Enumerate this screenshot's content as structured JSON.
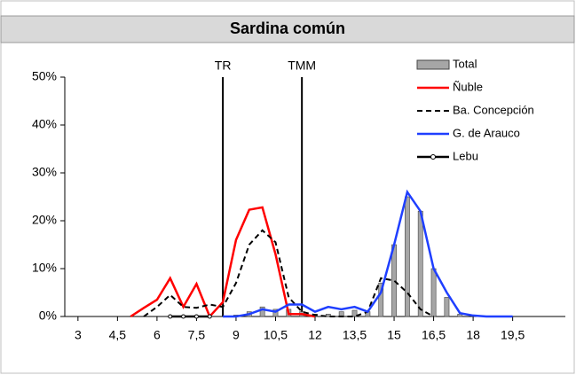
{
  "chart_data": {
    "type": "line",
    "title": "Sardina común",
    "x": [
      3,
      3.5,
      4,
      4.5,
      5,
      5.5,
      6,
      6.5,
      7,
      7.5,
      8,
      8.5,
      9,
      9.5,
      10,
      10.5,
      11,
      11.5,
      12,
      12.5,
      13,
      13.5,
      14,
      14.5,
      15,
      15.5,
      16,
      16.5,
      17,
      17.5,
      18,
      18.5,
      19,
      19.5,
      20,
      20.5,
      21
    ],
    "xlim": [
      2.5,
      21.5
    ],
    "xticks": [
      3,
      {
        "value": 4.5,
        "label": "4,5"
      },
      6,
      {
        "value": 7.5,
        "label": "7,5"
      },
      9,
      {
        "value": 10.5,
        "label": "10,5"
      },
      12,
      {
        "value": 13.5,
        "label": "13,5"
      },
      15,
      {
        "value": 16.5,
        "label": "16,5"
      },
      18,
      {
        "value": 19.5,
        "label": "19,5"
      }
    ],
    "ylim": [
      0,
      50
    ],
    "yticks": [
      {
        "value": 0,
        "label": "0%"
      },
      {
        "value": 10,
        "label": "10%"
      },
      {
        "value": 20,
        "label": "20%"
      },
      {
        "value": 30,
        "label": "30%"
      },
      {
        "value": 40,
        "label": "40%"
      },
      {
        "value": 50,
        "label": "50%"
      }
    ],
    "series": [
      {
        "name": "Total",
        "type": "bar",
        "color": "#a6a6a6",
        "values": [
          null,
          null,
          null,
          null,
          null,
          null,
          null,
          null,
          null,
          null,
          null,
          null,
          0.3,
          1,
          2,
          1.5,
          1.5,
          1,
          0.5,
          0.5,
          1,
          1.3,
          1,
          7,
          15,
          25,
          22,
          10,
          4,
          0.5,
          null,
          null,
          null,
          null,
          null,
          null,
          null
        ]
      },
      {
        "name": "Ñuble",
        "color": "#ff0000",
        "values": [
          null,
          null,
          null,
          null,
          0,
          1.8,
          3.5,
          8,
          2,
          6.8,
          0,
          3,
          16,
          22.3,
          22.8,
          13,
          0.5,
          0.5,
          0,
          null,
          null,
          null,
          null,
          null,
          null,
          null,
          null,
          null,
          null,
          null,
          null,
          null,
          null,
          null,
          null,
          null,
          null
        ]
      },
      {
        "name": "Ba. Concepción",
        "color": "#000000",
        "dash": true,
        "values": [
          null,
          null,
          null,
          null,
          null,
          0,
          2,
          4.5,
          2,
          1.8,
          2.5,
          2,
          7,
          15,
          18,
          15.5,
          4,
          1,
          0.3,
          0,
          0,
          0,
          1,
          8,
          7.5,
          5,
          1.5,
          0,
          null,
          null,
          null,
          null,
          null,
          null,
          null,
          null,
          null
        ]
      },
      {
        "name": "G. de Arauco",
        "color": "#1f3fff",
        "values": [
          null,
          null,
          null,
          null,
          null,
          null,
          null,
          null,
          null,
          null,
          null,
          0,
          0,
          0.5,
          1.5,
          1,
          2.5,
          2.5,
          1,
          2,
          1.5,
          2,
          1,
          5,
          15,
          26,
          22,
          10,
          5,
          0.7,
          0.2,
          0,
          0,
          0,
          null,
          null,
          null
        ]
      },
      {
        "name": "Lebu",
        "color": "#000000",
        "marker": "circle",
        "values": [
          null,
          null,
          null,
          null,
          null,
          null,
          null,
          0,
          0,
          0,
          0,
          null,
          null,
          null,
          null,
          null,
          null,
          null,
          null,
          null,
          null,
          null,
          null,
          null,
          null,
          null,
          null,
          null,
          null,
          null,
          null,
          null,
          null,
          null,
          null,
          null,
          null
        ]
      }
    ],
    "annotations": [
      {
        "text": "TR",
        "x": 8.5
      },
      {
        "text": "TMM",
        "x": 11.5
      }
    ]
  }
}
